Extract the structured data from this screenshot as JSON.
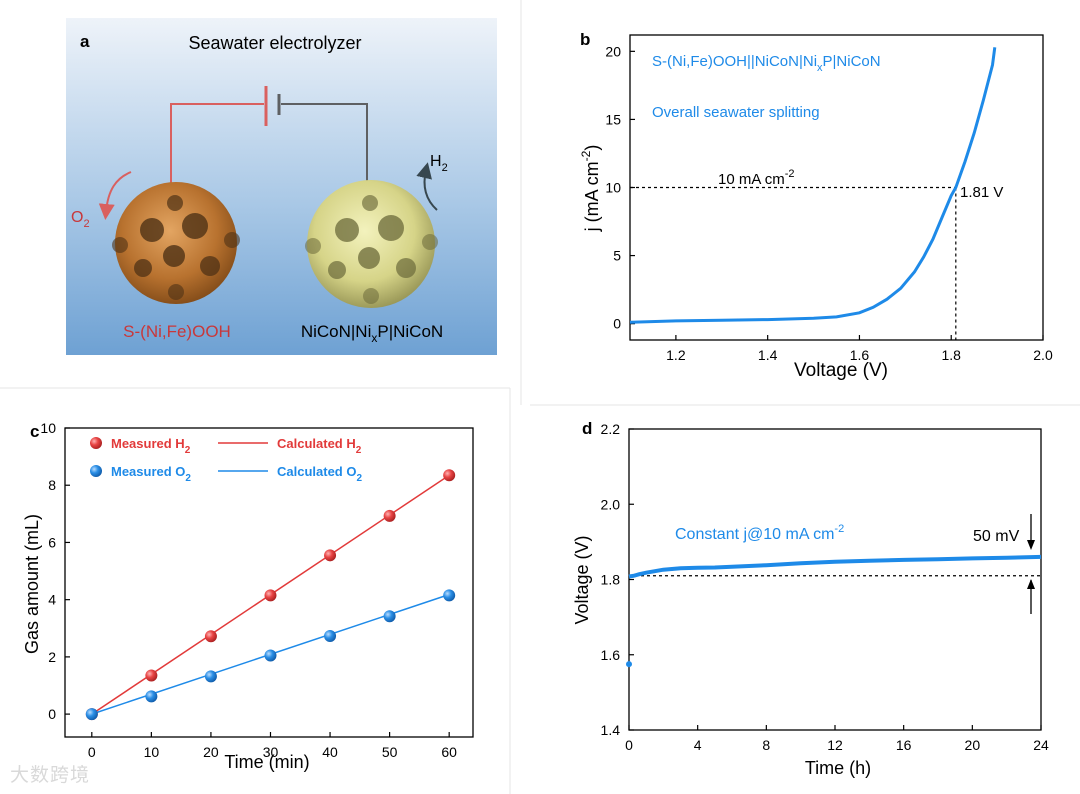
{
  "colors": {
    "blue": "#1e8ae8",
    "red": "#e23a3a",
    "wire_red": "#d9605f",
    "wire_gray": "#5e6062",
    "text_red": "#c8383a",
    "black": "#000000"
  },
  "panel_a": {
    "letter": "a",
    "title": "Seawater electrolyzer",
    "o2_label": "O",
    "o2_sub": "2",
    "h2_label": "H",
    "h2_sub": "2",
    "anode_label": "S-(Ni,Fe)OOH",
    "cathode_label_a": "NiCoN|Ni",
    "cathode_label_sub": "x",
    "cathode_label_b": "P|NiCoN"
  },
  "panel_b": {
    "letter": "b"
  },
  "panel_c": {
    "letter": "c"
  },
  "panel_d": {
    "letter": "d"
  },
  "watermark": "大数跨境",
  "chart_data": [
    {
      "id": "b",
      "type": "line",
      "title": "",
      "xlabel": "Voltage (V)",
      "ylabel": "j (mA cm⁻²)",
      "ylabel_main": "j (mA cm",
      "ylabel_sup": "-2",
      "ylabel_end": ")",
      "xlim": [
        1.1,
        2.0
      ],
      "ylim": [
        -1.2,
        21.2
      ],
      "xticks": [
        1.2,
        1.4,
        1.6,
        1.8,
        2.0
      ],
      "xtick_labels": [
        "1.2",
        "1.4",
        "1.6",
        "1.8",
        "2.0"
      ],
      "yticks": [
        0,
        5,
        10,
        15,
        20
      ],
      "ytick_labels": [
        "0",
        "5",
        "10",
        "15",
        "20"
      ],
      "legend_a": "S-(Ni,Fe)OOH||NiCoN|Ni",
      "legend_sub": "x",
      "legend_b": "P|NiCoN",
      "subtitle": "Overall seawater splitting",
      "ref_label": "10 mA cm",
      "ref_sup": "-2",
      "point_label": "1.81 V",
      "ref_y": 10,
      "ref_x": 1.81,
      "series": [
        {
          "name": "S-(Ni,Fe)OOH||NiCoN|NixP|NiCoN",
          "x": [
            1.1,
            1.2,
            1.3,
            1.4,
            1.5,
            1.55,
            1.6,
            1.63,
            1.66,
            1.69,
            1.72,
            1.74,
            1.76,
            1.78,
            1.8,
            1.81,
            1.83,
            1.85,
            1.87,
            1.89,
            1.895
          ],
          "y": [
            0.1,
            0.2,
            0.25,
            0.3,
            0.4,
            0.5,
            0.8,
            1.2,
            1.8,
            2.6,
            3.8,
            4.9,
            6.2,
            7.8,
            9.4,
            10.0,
            11.9,
            14.0,
            16.4,
            19.0,
            20.3
          ]
        }
      ]
    },
    {
      "id": "c",
      "type": "scatter",
      "title": "",
      "xlabel": "Time (min)",
      "ylabel": "Gas amount (mL)",
      "xlim": [
        -4.5,
        64
      ],
      "ylim": [
        -0.8,
        10
      ],
      "xticks": [
        0,
        10,
        20,
        30,
        40,
        50,
        60
      ],
      "xtick_labels": [
        "0",
        "10",
        "20",
        "30",
        "40",
        "50",
        "60"
      ],
      "yticks": [
        0,
        2,
        4,
        6,
        8,
        10
      ],
      "ytick_labels": [
        "0",
        "2",
        "4",
        "6",
        "8",
        "10"
      ],
      "legend": [
        {
          "kind": "marker",
          "series": 0,
          "label": "Measured H",
          "sub": "2"
        },
        {
          "kind": "line",
          "series": 0,
          "label": "Calculated H",
          "sub": "2"
        },
        {
          "kind": "marker",
          "series": 1,
          "label": "Measured O",
          "sub": "2"
        },
        {
          "kind": "line",
          "series": 1,
          "label": "Calculated O",
          "sub": "2"
        }
      ],
      "x": [
        0,
        10,
        20,
        30,
        40,
        50,
        60
      ],
      "series": [
        {
          "name": "Measured H2",
          "values": [
            0.0,
            1.35,
            2.72,
            4.15,
            5.55,
            6.93,
            8.35
          ],
          "calc_end": 8.35
        },
        {
          "name": "Measured O2",
          "values": [
            0.0,
            0.62,
            1.32,
            2.05,
            2.73,
            3.42,
            4.15
          ],
          "calc_end": 4.18
        }
      ]
    },
    {
      "id": "d",
      "type": "line",
      "title": "",
      "xlabel": "Time (h)",
      "ylabel": "Voltage (V)",
      "xlim": [
        0,
        24
      ],
      "ylim": [
        1.4,
        2.2
      ],
      "xticks": [
        0,
        4,
        8,
        12,
        16,
        20,
        24
      ],
      "xtick_labels": [
        "0",
        "4",
        "8",
        "12",
        "16",
        "20",
        "24"
      ],
      "yticks": [
        1.4,
        1.6,
        1.8,
        2.0,
        2.2
      ],
      "ytick_labels": [
        "1.4",
        "1.6",
        "1.8",
        "2.0",
        "2.2"
      ],
      "annotation_a": "Constant j@10 mA cm",
      "annotation_sup": "-2",
      "delta_label": "50 mV",
      "baseline_y": 1.81,
      "outlier": {
        "x": 0,
        "y": 1.575
      },
      "series": [
        {
          "name": "Voltage",
          "x": [
            0,
            0.3,
            0.6,
            1,
            1.5,
            2,
            2.5,
            3,
            4,
            5,
            6,
            8,
            10,
            12,
            14,
            16,
            18,
            20,
            22,
            24
          ],
          "y": [
            1.808,
            1.81,
            1.814,
            1.818,
            1.822,
            1.826,
            1.828,
            1.83,
            1.831,
            1.832,
            1.834,
            1.838,
            1.843,
            1.847,
            1.85,
            1.852,
            1.854,
            1.856,
            1.858,
            1.86
          ]
        }
      ]
    }
  ]
}
